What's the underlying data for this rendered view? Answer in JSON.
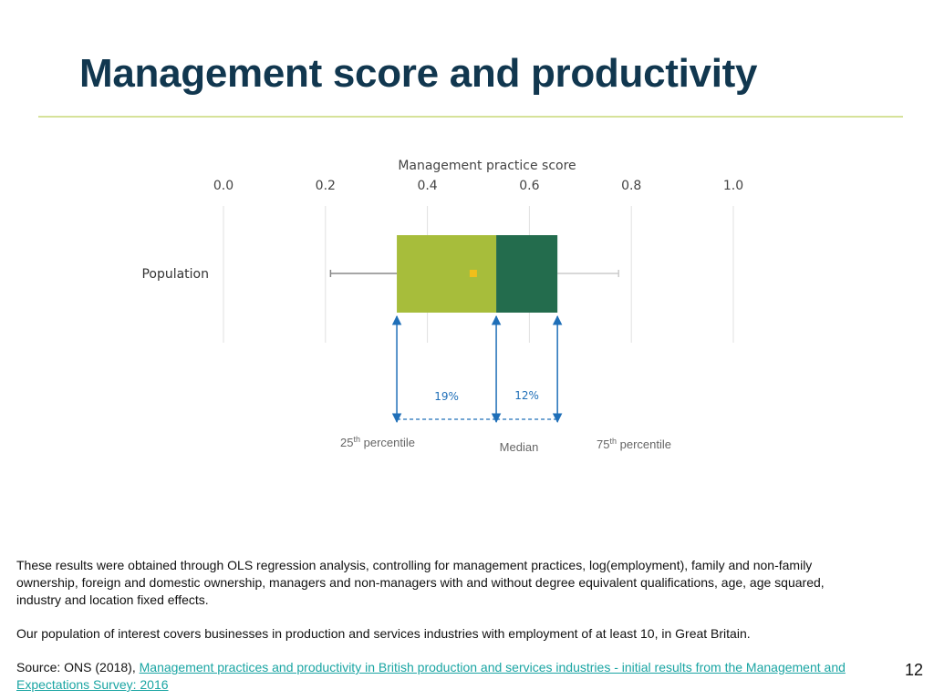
{
  "slide": {
    "title": "Management score and productivity",
    "page_number": "12"
  },
  "colors": {
    "title": "#11374f",
    "rule": "#d6e29a",
    "box_lower": "#a7bd3b",
    "box_upper": "#236c4d",
    "mean_marker": "#f0bf1a",
    "arrow": "#1f6fb8",
    "gridline": "#e0e0e0",
    "whisker": "#888888",
    "link": "#1aa5a3"
  },
  "chart_data": {
    "type": "box",
    "title": "Management practice score",
    "ylabel": "",
    "xlim": [
      0.0,
      1.0
    ],
    "ticks": [
      "0.0",
      "0.2",
      "0.4",
      "0.6",
      "0.8",
      "1.0"
    ],
    "categories": [
      "Population"
    ],
    "box": {
      "whisker_low": 0.21,
      "q1": 0.34,
      "median": 0.535,
      "q3": 0.655,
      "whisker_high": 0.775,
      "mean": 0.49
    },
    "gap_labels": [
      {
        "text": "19%",
        "from": "q1",
        "to": "median"
      },
      {
        "text": "12%",
        "from": "median",
        "to": "q3"
      }
    ],
    "marker_labels": {
      "q1": {
        "base": "25",
        "sup": "th",
        "rest": " percentile"
      },
      "median": {
        "text": "Median"
      },
      "q3": {
        "base": "75",
        "sup": "th",
        "rest": " percentile"
      }
    }
  },
  "notes": {
    "method": "These results were obtained through OLS regression analysis, controlling for management practices, log(employment), family and non-family ownership, foreign and domestic ownership, managers and non-managers with and without degree equivalent qualifications, age, age squared, industry and location fixed effects.",
    "population": "Our population of interest covers businesses in production and services industries with employment of at least 10, in Great Britain.",
    "source_prefix": "Source: ONS (2018), ",
    "source_link": "Management practices and productivity in British production and services industries - initial results from the Management and Expectations Survey: 2016"
  }
}
